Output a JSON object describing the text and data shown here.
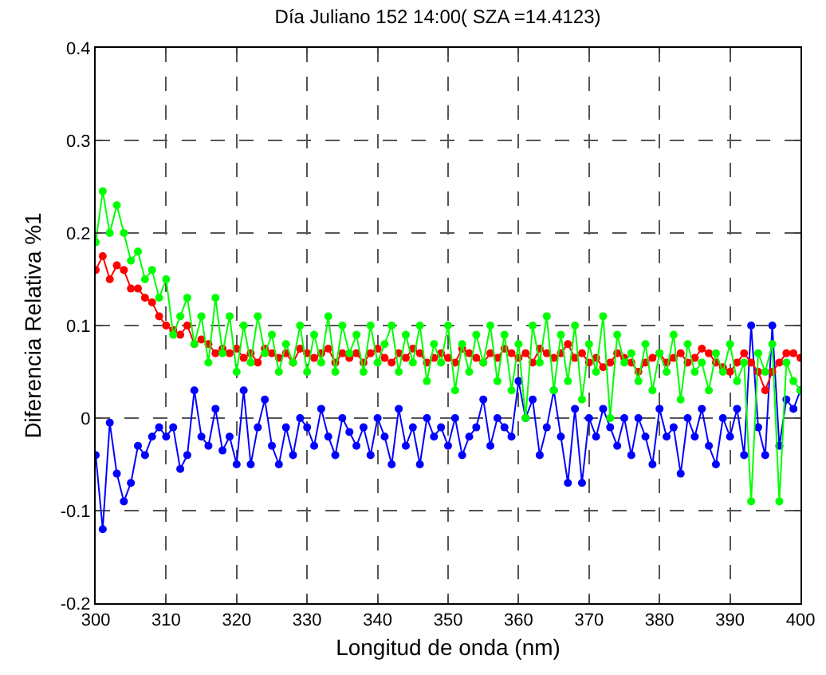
{
  "chart_data": {
    "type": "line",
    "title": "Día Juliano 152 14:00( SZA =14.4123)",
    "xlabel": "Longitud de onda (nm)",
    "ylabel": "Diferencia Relativa %1",
    "x": [
      300,
      301,
      302,
      303,
      304,
      305,
      306,
      307,
      308,
      309,
      310,
      311,
      312,
      313,
      314,
      315,
      316,
      317,
      318,
      319,
      320,
      321,
      322,
      323,
      324,
      325,
      326,
      327,
      328,
      329,
      330,
      331,
      332,
      333,
      334,
      335,
      336,
      337,
      338,
      339,
      340,
      341,
      342,
      343,
      344,
      345,
      346,
      347,
      348,
      349,
      350,
      351,
      352,
      353,
      354,
      355,
      356,
      357,
      358,
      359,
      360,
      361,
      362,
      363,
      364,
      365,
      366,
      367,
      368,
      369,
      370,
      371,
      372,
      373,
      374,
      375,
      376,
      377,
      378,
      379,
      380,
      381,
      382,
      383,
      384,
      385,
      386,
      387,
      388,
      389,
      390,
      391,
      392,
      393,
      394,
      395,
      396,
      397,
      398,
      399,
      400
    ],
    "series": [
      {
        "color": "#0000ff",
        "values": [
          -0.04,
          -0.12,
          -0.005,
          -0.06,
          -0.09,
          -0.07,
          -0.03,
          -0.04,
          -0.02,
          -0.01,
          -0.02,
          -0.01,
          -0.055,
          -0.04,
          0.03,
          -0.02,
          -0.03,
          0.01,
          -0.035,
          -0.02,
          -0.05,
          0.03,
          -0.05,
          -0.01,
          0.02,
          -0.03,
          -0.05,
          -0.01,
          -0.04,
          0.0,
          -0.01,
          -0.03,
          0.01,
          -0.02,
          -0.04,
          0.0,
          -0.015,
          -0.03,
          -0.01,
          -0.04,
          0.0,
          -0.02,
          -0.05,
          0.01,
          -0.03,
          -0.01,
          -0.05,
          0.0,
          -0.02,
          -0.01,
          -0.03,
          0.0,
          -0.04,
          -0.02,
          -0.01,
          0.02,
          -0.03,
          0.0,
          -0.01,
          -0.02,
          0.04,
          0.0,
          0.02,
          -0.04,
          -0.01,
          0.03,
          -0.02,
          -0.07,
          0.01,
          -0.07,
          0.0,
          -0.02,
          0.01,
          -0.01,
          -0.03,
          0.0,
          -0.04,
          0.0,
          -0.02,
          -0.05,
          0.01,
          -0.02,
          -0.01,
          -0.06,
          0.0,
          -0.02,
          0.01,
          -0.03,
          -0.05,
          0.0,
          -0.02,
          0.01,
          -0.04,
          0.1,
          -0.01,
          -0.04,
          0.1,
          -0.03,
          0.02,
          0.01,
          0.03
        ]
      },
      {
        "color": "#ff0000",
        "values": [
          0.16,
          0.175,
          0.15,
          0.165,
          0.16,
          0.14,
          0.14,
          0.13,
          0.125,
          0.11,
          0.1,
          0.095,
          0.09,
          0.1,
          0.08,
          0.085,
          0.08,
          0.07,
          0.075,
          0.07,
          0.075,
          0.065,
          0.07,
          0.06,
          0.075,
          0.07,
          0.065,
          0.07,
          0.06,
          0.075,
          0.07,
          0.065,
          0.07,
          0.075,
          0.06,
          0.07,
          0.065,
          0.07,
          0.06,
          0.07,
          0.075,
          0.065,
          0.06,
          0.07,
          0.065,
          0.075,
          0.07,
          0.06,
          0.065,
          0.07,
          0.065,
          0.06,
          0.075,
          0.07,
          0.065,
          0.06,
          0.07,
          0.065,
          0.075,
          0.07,
          0.065,
          0.07,
          0.06,
          0.075,
          0.07,
          0.065,
          0.07,
          0.08,
          0.065,
          0.07,
          0.06,
          0.065,
          0.055,
          0.06,
          0.07,
          0.065,
          0.06,
          0.05,
          0.06,
          0.065,
          0.07,
          0.06,
          0.065,
          0.07,
          0.06,
          0.065,
          0.075,
          0.07,
          0.06,
          0.055,
          0.05,
          0.06,
          0.07,
          0.06,
          0.05,
          0.03,
          0.05,
          0.06,
          0.07,
          0.07,
          0.065
        ]
      },
      {
        "color": "#00ff00",
        "values": [
          0.19,
          0.245,
          0.2,
          0.23,
          0.2,
          0.17,
          0.18,
          0.15,
          0.16,
          0.13,
          0.15,
          0.09,
          0.11,
          0.13,
          0.08,
          0.11,
          0.06,
          0.13,
          0.07,
          0.11,
          0.05,
          0.1,
          0.06,
          0.11,
          0.07,
          0.09,
          0.05,
          0.08,
          0.06,
          0.1,
          0.05,
          0.09,
          0.06,
          0.11,
          0.05,
          0.1,
          0.07,
          0.09,
          0.05,
          0.1,
          0.06,
          0.08,
          0.1,
          0.05,
          0.09,
          0.06,
          0.1,
          0.04,
          0.08,
          0.06,
          0.1,
          0.03,
          0.08,
          0.05,
          0.09,
          0.06,
          0.1,
          0.04,
          0.09,
          0.03,
          0.08,
          0.0,
          0.1,
          0.06,
          0.11,
          0.03,
          0.09,
          0.04,
          0.1,
          0.02,
          0.08,
          0.05,
          0.11,
          0.0,
          0.09,
          0.06,
          0.07,
          0.04,
          0.08,
          0.03,
          0.07,
          0.05,
          0.09,
          0.02,
          0.08,
          0.05,
          0.06,
          0.03,
          0.07,
          0.05,
          0.08,
          0.04,
          0.06,
          -0.09,
          0.07,
          0.05,
          0.08,
          -0.09,
          0.06,
          0.04,
          0.03
        ]
      }
    ],
    "xlim": [
      300,
      400
    ],
    "ylim": [
      -0.2,
      0.4
    ],
    "xticks": [
      300,
      310,
      320,
      330,
      340,
      350,
      360,
      370,
      380,
      390,
      400
    ],
    "yticks": [
      -0.2,
      -0.1,
      0,
      0.1,
      0.2,
      0.3,
      0.4
    ],
    "grid": true,
    "marker": "circle",
    "line_style": "solid"
  }
}
